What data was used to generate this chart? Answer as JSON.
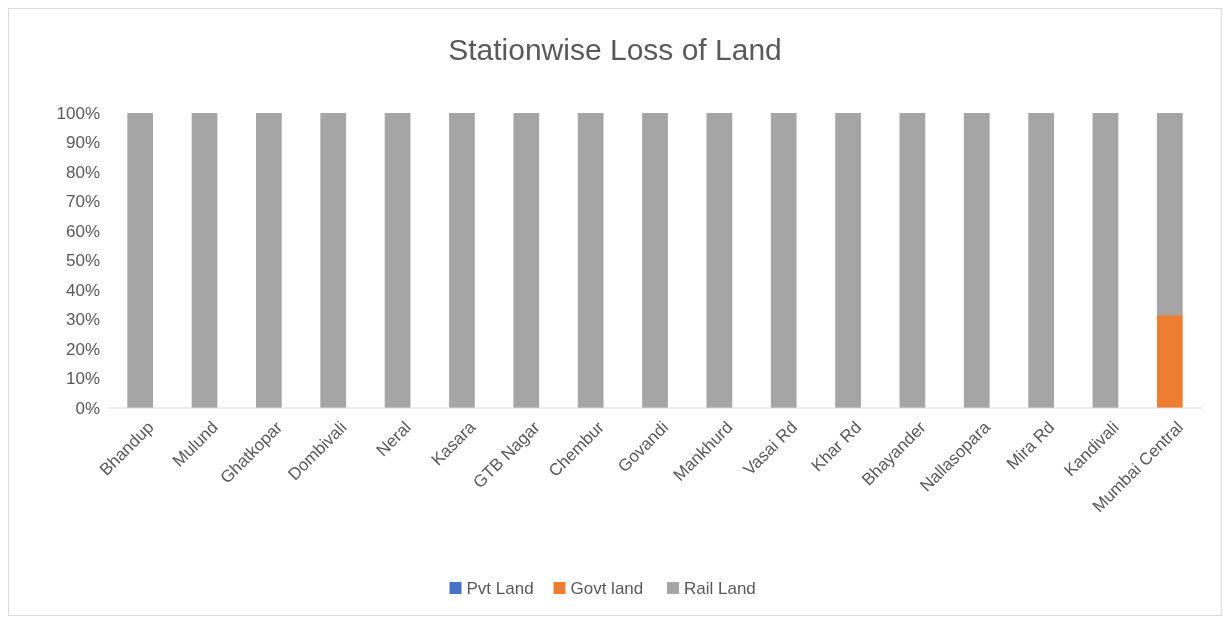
{
  "chart_data": {
    "type": "bar",
    "title": "Stationwise Loss of Land",
    "stacked": true,
    "categories": [
      "Bhandup",
      "Mulund",
      "Ghatkopar",
      "Dombivali",
      "Neral",
      "Kasara",
      "GTB Nagar",
      "Chembur",
      "Govandi",
      "Mankhurd",
      "Vasai Rd",
      "Khar Rd",
      "Bhayander",
      "Nallasopara",
      "Mira Rd",
      "Kandivali",
      "Mumbai Central"
    ],
    "series": [
      {
        "name": "Pvt Land",
        "color": "#4472c4",
        "values": [
          0,
          0,
          0,
          0,
          0,
          0,
          0,
          0,
          0,
          0,
          0,
          0,
          0,
          0,
          0,
          0,
          0
        ]
      },
      {
        "name": "Govt land",
        "color": "#ed7d31",
        "values": [
          0,
          0,
          0,
          0,
          0,
          0,
          0,
          0,
          0,
          0,
          0,
          0,
          0,
          0,
          0,
          0,
          31.5
        ]
      },
      {
        "name": "Rail Land",
        "color": "#a5a5a5",
        "values": [
          100,
          100,
          100,
          100,
          100,
          100,
          100,
          100,
          100,
          100,
          100,
          100,
          100,
          100,
          100,
          100,
          68.5
        ]
      }
    ],
    "ylim": [
      0,
      100
    ],
    "yticks": [
      {
        "value": 0,
        "label": "0%"
      },
      {
        "value": 10,
        "label": "10%"
      },
      {
        "value": 20,
        "label": "20%"
      },
      {
        "value": 30,
        "label": "30%"
      },
      {
        "value": 40,
        "label": "40%"
      },
      {
        "value": 50,
        "label": "50%"
      },
      {
        "value": 60,
        "label": "60%"
      },
      {
        "value": 70,
        "label": "70%"
      },
      {
        "value": 80,
        "label": "80%"
      },
      {
        "value": 90,
        "label": "90%"
      },
      {
        "value": 100,
        "label": "100%"
      }
    ],
    "grid": false,
    "legend": "bottom"
  }
}
